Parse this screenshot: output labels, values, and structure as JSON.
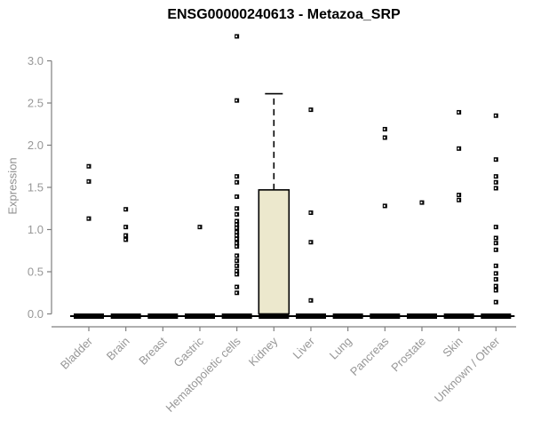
{
  "chart_data": {
    "type": "boxplot",
    "title": "ENSG00000240613 - Metazoa_SRP",
    "ylabel": "Expression",
    "xlabel": "",
    "ylim": [
      0,
      3.3
    ],
    "y_ticks": [
      "0.0",
      "0.5",
      "1.0",
      "1.5",
      "2.0",
      "2.5",
      "3.0"
    ],
    "grid": false,
    "legend": false,
    "categories": [
      "Bladder",
      "Brain",
      "Breast",
      "Gastric",
      "Hematopoietic cells",
      "Kidney",
      "Liver",
      "Lung",
      "Pancreas",
      "Prostate",
      "Skin",
      "Unknown / Other"
    ],
    "boxes": [
      {
        "category": "Bladder",
        "q1": 0,
        "median": 0,
        "q3": 0,
        "whisker_low": 0,
        "whisker_high": 0,
        "outliers": [
          1.75,
          1.57,
          1.13
        ]
      },
      {
        "category": "Brain",
        "q1": 0,
        "median": 0,
        "q3": 0,
        "whisker_low": 0,
        "whisker_high": 0,
        "outliers": [
          1.24,
          1.03,
          0.93,
          0.88
        ]
      },
      {
        "category": "Breast",
        "q1": 0,
        "median": 0,
        "q3": 0,
        "whisker_low": 0,
        "whisker_high": 0,
        "outliers": []
      },
      {
        "category": "Gastric",
        "q1": 0,
        "median": 0,
        "q3": 0,
        "whisker_low": 0,
        "whisker_high": 0,
        "outliers": [
          1.03
        ]
      },
      {
        "category": "Hematopoietic cells",
        "q1": 0,
        "median": 0,
        "q3": 0,
        "whisker_low": 0,
        "whisker_high": 0,
        "outliers": [
          3.29,
          2.53,
          1.63,
          1.56,
          1.39,
          1.25,
          1.18,
          1.1,
          1.06,
          1.02,
          0.97,
          0.93,
          0.89,
          0.84,
          0.8,
          0.69,
          0.63,
          0.57,
          0.51,
          0.47,
          0.32,
          0.25
        ]
      },
      {
        "category": "Kidney",
        "q1": 0,
        "median": 0,
        "q3": 1.47,
        "whisker_low": 0,
        "whisker_high": 2.61,
        "outliers": []
      },
      {
        "category": "Liver",
        "q1": 0,
        "median": 0,
        "q3": 0,
        "whisker_low": 0,
        "whisker_high": 0,
        "outliers": [
          2.42,
          1.2,
          0.85,
          0.16
        ]
      },
      {
        "category": "Lung",
        "q1": 0,
        "median": 0,
        "q3": 0,
        "whisker_low": 0,
        "whisker_high": 0,
        "outliers": []
      },
      {
        "category": "Pancreas",
        "q1": 0,
        "median": 0,
        "q3": 0,
        "whisker_low": 0,
        "whisker_high": 0,
        "outliers": [
          2.19,
          2.09,
          1.28
        ]
      },
      {
        "category": "Prostate",
        "q1": 0,
        "median": 0,
        "q3": 0,
        "whisker_low": 0,
        "whisker_high": 0,
        "outliers": [
          1.32
        ]
      },
      {
        "category": "Skin",
        "q1": 0,
        "median": 0,
        "q3": 0,
        "whisker_low": 0,
        "whisker_high": 0,
        "outliers": [
          2.39,
          1.96,
          1.41,
          1.35
        ]
      },
      {
        "category": "Unknown / Other",
        "q1": 0,
        "median": 0,
        "q3": 0,
        "whisker_low": 0,
        "whisker_high": 0,
        "outliers": [
          2.35,
          1.83,
          1.63,
          1.56,
          1.49,
          1.03,
          0.9,
          0.84,
          0.76,
          0.57,
          0.48,
          0.41,
          0.33,
          0.28,
          0.14
        ]
      }
    ],
    "colors": {
      "box_fill": "#ECE8CD",
      "box_border": "#000000",
      "median": "#000000",
      "outlier": "#000000",
      "axis_line": "#7f7f7f",
      "tick_text": "#979797",
      "title_text": "#000000",
      "background": "#ffffff"
    }
  }
}
